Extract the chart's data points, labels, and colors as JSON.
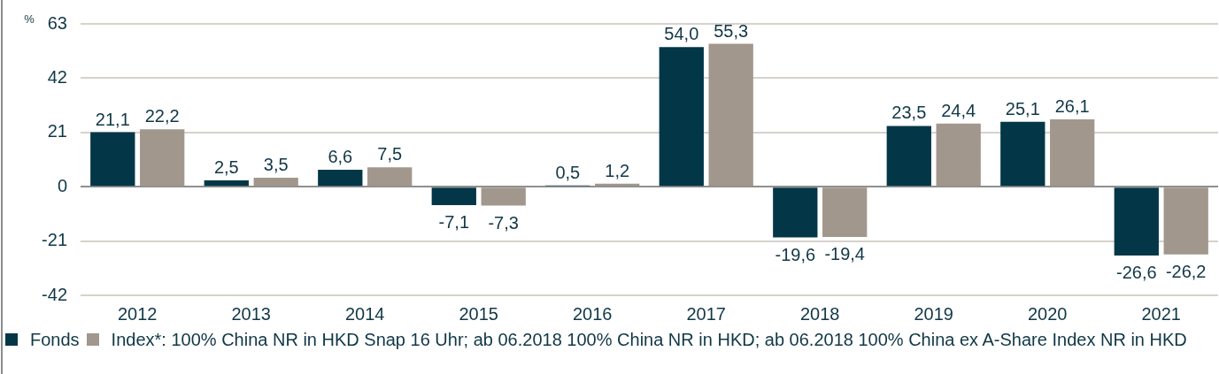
{
  "chart_data": {
    "type": "bar",
    "ylabel": "%",
    "categories": [
      "2012",
      "2013",
      "2014",
      "2015",
      "2016",
      "2017",
      "2018",
      "2019",
      "2020",
      "2021"
    ],
    "series": [
      {
        "name": "Fonds",
        "color": "#033747",
        "values": [
          21.1,
          2.5,
          6.6,
          -7.1,
          0.5,
          54.0,
          -19.6,
          23.5,
          25.1,
          -26.6
        ],
        "value_labels": [
          "21,1",
          "2,5",
          "6,6",
          "-7,1",
          "0,5",
          "54,0",
          "-19,6",
          "23,5",
          "25,1",
          "-26,6"
        ]
      },
      {
        "name": "Index*: 100% China NR in HKD Snap 16 Uhr; ab 06.2018 100% China NR in HKD; ab 06.2018 100% China ex A-Share Index NR in HKD",
        "color": "#a1978c",
        "values": [
          22.2,
          3.5,
          7.5,
          -7.3,
          1.2,
          55.3,
          -19.4,
          24.4,
          26.1,
          -26.2
        ],
        "value_labels": [
          "22,2",
          "3,5",
          "7,5",
          "-7,3",
          "1,2",
          "55,3",
          "-19,4",
          "24,4",
          "26,1",
          "-26,2"
        ]
      }
    ],
    "ylim": [
      -42,
      63
    ],
    "yticks": [
      -42,
      -21,
      0,
      21,
      42,
      63
    ],
    "grid": "y",
    "legend": "bottom"
  }
}
